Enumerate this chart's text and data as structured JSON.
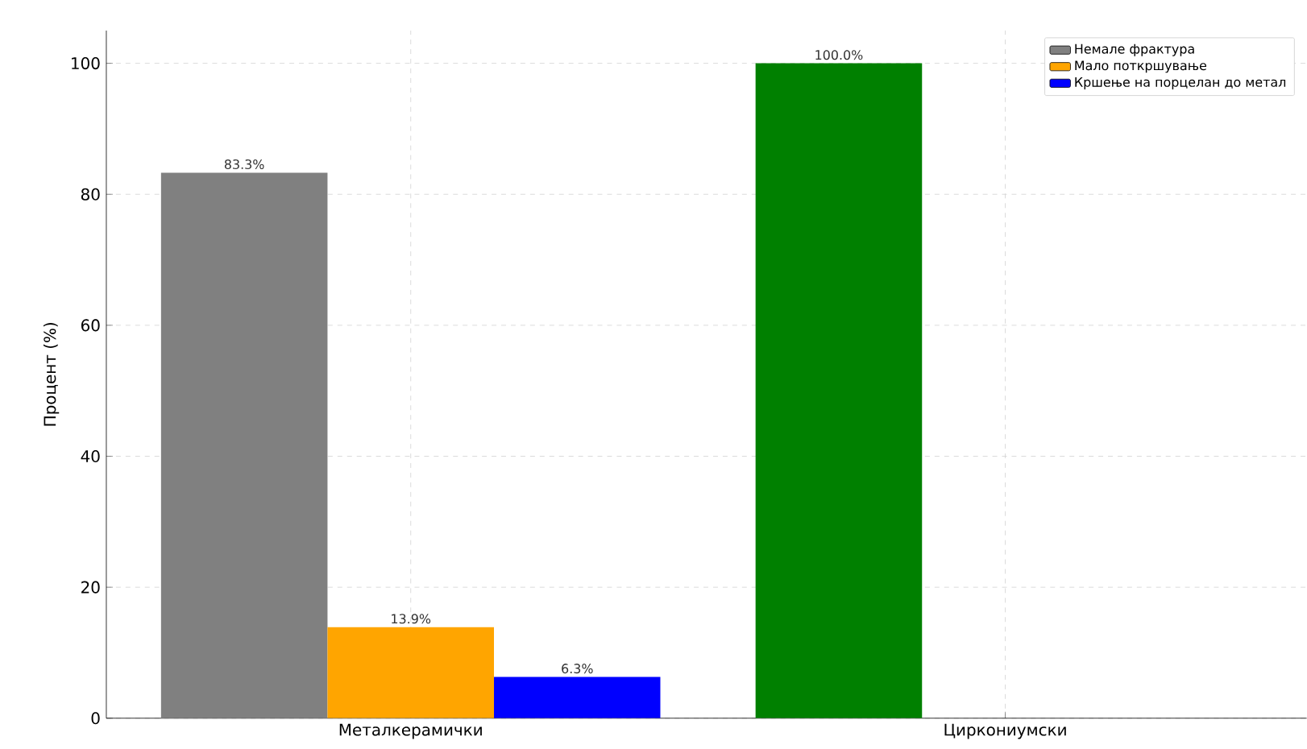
{
  "chart_data": {
    "type": "bar",
    "ylabel": "Процент (%)",
    "categories": [
      "Металкерамички",
      "Циркониумски"
    ],
    "series": [
      {
        "name": "Немале фрактура",
        "colors": [
          "#808080",
          "#008000"
        ],
        "values": [
          83.3,
          100
        ],
        "value_labels": [
          "83.3%",
          "100.0%"
        ]
      },
      {
        "name": "Мало поткршување",
        "color": "#ffa500",
        "values": [
          13.9,
          null
        ],
        "value_labels": [
          "13.9%",
          null
        ]
      },
      {
        "name": "Кршење на порцелан до метал",
        "color": "#0000ff",
        "values": [
          6.3,
          null
        ],
        "value_labels": [
          "6.3%",
          null
        ]
      }
    ],
    "ylim": [
      0,
      105
    ],
    "yticks": [
      0,
      20,
      40,
      60,
      80,
      100
    ],
    "grid": true,
    "legend": "top right"
  }
}
